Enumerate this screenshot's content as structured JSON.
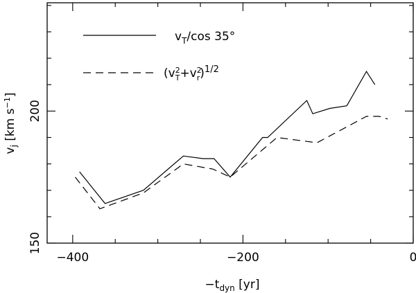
{
  "chart_data": {
    "type": "line",
    "xlim": [
      -430,
      0
    ],
    "ylim": [
      150,
      241
    ],
    "x_ticks": [
      -400,
      -200,
      0
    ],
    "y_ticks": [
      150,
      200
    ],
    "x_tick_labels": [
      "−400",
      "−200",
      "0"
    ],
    "y_tick_labels": [
      "150",
      "200"
    ],
    "x_minor_step": 50,
    "y_minor_step": 10,
    "xlabel": {
      "prefix": "−t",
      "sub": "dyn",
      "suffix": " [yr]"
    },
    "ylabel": {
      "base": "v",
      "sub": "j",
      "unit_open": " [km s",
      "unit_sup": "−1",
      "unit_close": "]"
    },
    "grid": false,
    "legend_placement": "top-left",
    "series": [
      {
        "name": "vT/cos 35°",
        "style": "solid",
        "legend": {
          "base": "v",
          "sub": "T",
          "rest": "/cos 35°"
        },
        "x": [
          -392,
          -362,
          -317,
          -270,
          -247,
          -234,
          -215,
          -177,
          -171,
          -125,
          -118,
          -98,
          -78,
          -55,
          -45
        ],
        "y": [
          177,
          165,
          170,
          183,
          182,
          182,
          175,
          190,
          190,
          204,
          199,
          201,
          202,
          215,
          210
        ]
      },
      {
        "name": "(vT²+vr²)^1/2",
        "style": "dashed",
        "legend": {
          "open": "(v",
          "sup1": "2",
          "sub1": "T",
          "plus": "+v",
          "sup2": "2",
          "sub2": "r",
          "close": ")",
          "power": "1/2"
        },
        "x": [
          -397,
          -368,
          -317,
          -270,
          -235,
          -215,
          -160,
          -113,
          -55,
          -40,
          -30
        ],
        "y": [
          175,
          163,
          169,
          180,
          178,
          175,
          190,
          188,
          198,
          198,
          197
        ]
      }
    ]
  }
}
